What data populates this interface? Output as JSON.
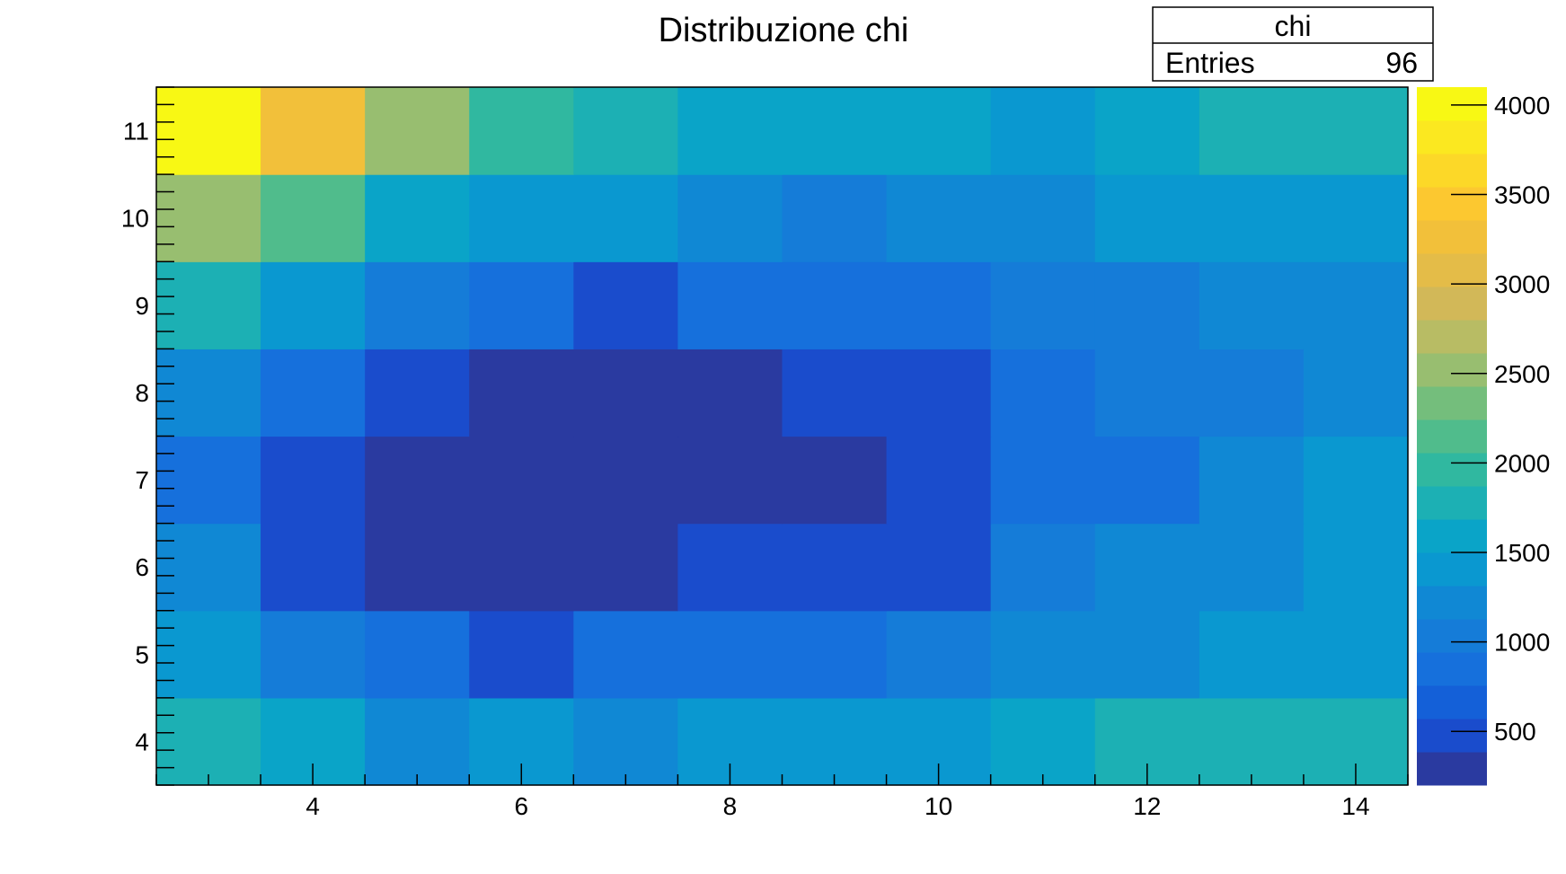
{
  "chart_data": {
    "type": "heatmap",
    "title": "Distribuzione chi",
    "x_bin_centers": [
      3,
      4,
      5,
      6,
      7,
      8,
      9,
      10,
      11,
      12,
      13,
      14
    ],
    "x_range": [
      2.5,
      14.5
    ],
    "y_bin_centers": [
      4,
      5,
      6,
      7,
      8,
      9,
      10,
      11
    ],
    "y_range": [
      3.5,
      11.5
    ],
    "x_ticks": [
      4,
      6,
      8,
      10,
      12,
      14
    ],
    "y_ticks": [
      4,
      5,
      6,
      7,
      8,
      9,
      10,
      11
    ],
    "z_values": [
      [
        1850,
        1600,
        1200,
        1400,
        1200,
        1400,
        1400,
        1400,
        1600,
        1700,
        1850,
        1850
      ],
      [
        1400,
        1000,
        800,
        550,
        800,
        800,
        800,
        1000,
        1200,
        1300,
        1350,
        1400
      ],
      [
        1150,
        550,
        350,
        350,
        350,
        550,
        550,
        550,
        1000,
        1200,
        1200,
        1350
      ],
      [
        900,
        550,
        350,
        350,
        350,
        350,
        350,
        550,
        800,
        800,
        1150,
        1350
      ],
      [
        1150,
        800,
        550,
        350,
        350,
        350,
        550,
        550,
        800,
        1000,
        1000,
        1150
      ],
      [
        1850,
        1350,
        1050,
        800,
        550,
        800,
        800,
        800,
        1000,
        1000,
        1150,
        1150
      ],
      [
        2600,
        2100,
        1650,
        1400,
        1400,
        1200,
        1000,
        1200,
        1250,
        1350,
        1350,
        1350
      ],
      [
        4100,
        3200,
        2600,
        2000,
        1850,
        1650,
        1650,
        1550,
        1350,
        1550,
        1700,
        1700
      ]
    ],
    "z_range": [
      200,
      4100
    ],
    "z_ticks": [
      500,
      1000,
      1500,
      2000,
      2500,
      3000,
      3500,
      4000
    ],
    "palette": [
      "#2a3aa0",
      "#1a4ccc",
      "#1460d8",
      "#1670dc",
      "#157cd8",
      "#1088d4",
      "#0a98d0",
      "#0aa4c8",
      "#1cb0b4",
      "#30b8a0",
      "#50bc8c",
      "#74be7c",
      "#98be70",
      "#b8bc64",
      "#d2b858",
      "#e4bc48",
      "#f2c03a",
      "#fcc830",
      "#fcd828",
      "#fbe820",
      "#f8f814"
    ],
    "stats": {
      "name": "chi",
      "entries_label": "Entries",
      "entries": "96"
    }
  }
}
